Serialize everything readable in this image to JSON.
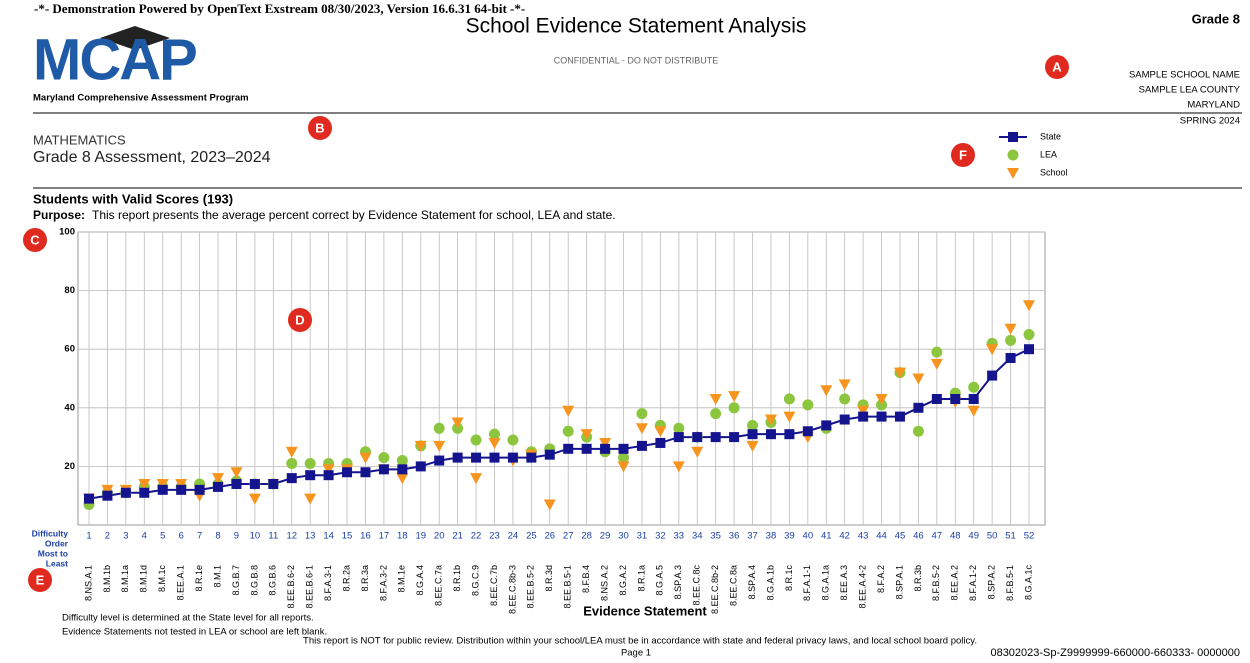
{
  "header": {
    "demo": "-*- Demonstration Powered by OpenText Exstream 08/30/2023, Version 16.6.31 64-bit -*-",
    "title": "School Evidence Statement Analysis",
    "grade": "Grade 8",
    "logo": "MCAP",
    "program": "Maryland Comprehensive Assessment Program",
    "confidential": "CONFIDENTIAL - DO NOT DISTRIBUTE",
    "school": "SAMPLE SCHOOL NAME",
    "lea": "SAMPLE LEA COUNTY",
    "state": "MARYLAND",
    "season": "SPRING 2024"
  },
  "subject": "MATHEMATICS",
  "assessment": "Grade 8 Assessment, 2023–2024",
  "students": "Students with Valid Scores (193)",
  "purpose_label": "Purpose:",
  "purpose": "This report presents the average percent correct by Evidence Statement for school, LEA and state.",
  "callouts": [
    "A",
    "B",
    "C",
    "D",
    "E",
    "F"
  ],
  "chart_data": {
    "type": "line",
    "x_label": "Evidence Statement",
    "order_label": [
      "Difficulty",
      "Order",
      "Most to",
      "Least"
    ],
    "difficulty_order": [
      1,
      2,
      3,
      4,
      5,
      6,
      7,
      8,
      9,
      10,
      11,
      12,
      13,
      14,
      15,
      16,
      17,
      18,
      19,
      20,
      21,
      22,
      23,
      24,
      25,
      26,
      27,
      28,
      29,
      30,
      31,
      32,
      33,
      34,
      35,
      36,
      37,
      38,
      39,
      40,
      41,
      42,
      43,
      44,
      45,
      46,
      47,
      48,
      49,
      50,
      51,
      52
    ],
    "categories": [
      "8.NS.A.1",
      "8.M.1b",
      "8.M.1a",
      "8.M.1d",
      "8.M.1c",
      "8.EE.A.1",
      "8.R.1e",
      "8.M.1",
      "8.G.B.7",
      "8.G.B.8",
      "8.G.B.6",
      "8.EE.B.6-2",
      "8.EE.B.6-1",
      "8.F.A.3-1",
      "8.R.2a",
      "8.R.3a",
      "8.F.A.3-2",
      "8.M.1e",
      "8.G.A.4",
      "8.EE.C.7a",
      "8.R.1b",
      "8.G.C.9",
      "8.EE.C.7b",
      "8.EE.C.8b-3",
      "8.EE.B.5-2",
      "8.R.3d",
      "8.EE.B.5-1",
      "8.F.B.4",
      "8.NS.A.2",
      "8.G.A.2",
      "8.R.1a",
      "8.G.A.5",
      "8.SP.A.3",
      "8.EE.C.8c",
      "8.EE.C.8b-2",
      "8.EE.C.8a",
      "8.SP.A.4",
      "8.G.A.1b",
      "8.R.1c",
      "8.F.A.1-1",
      "8.G.A.1a",
      "8.EE.A.3",
      "8.EE.A.4-2",
      "8.F.A.2",
      "8.SP.A.1",
      "8.R.3b",
      "8.F.B.5-2",
      "8.EE.A.2",
      "8.F.A.1-2",
      "8.SP.A.2",
      "8.F.B.5-1",
      "8.G.A.1c"
    ],
    "series": [
      {
        "name": "State",
        "color": "#14148f",
        "marker": "square",
        "values": [
          9,
          10,
          11,
          11,
          12,
          12,
          12,
          13,
          14,
          14,
          14,
          16,
          17,
          17,
          18,
          18,
          19,
          19,
          20,
          22,
          23,
          23,
          23,
          23,
          23,
          24,
          26,
          26,
          26,
          26,
          27,
          28,
          30,
          30,
          30,
          30,
          31,
          31,
          31,
          32,
          34,
          36,
          37,
          37,
          37,
          40,
          43,
          43,
          43,
          51,
          57,
          60
        ]
      },
      {
        "name": "LEA",
        "color": "#8cc63f",
        "marker": "circle",
        "values": [
          7,
          11,
          11,
          13,
          13,
          13,
          14,
          14,
          15,
          14,
          14,
          21,
          21,
          21,
          21,
          25,
          23,
          22,
          27,
          33,
          33,
          29,
          31,
          29,
          25,
          26,
          32,
          30,
          25,
          23,
          38,
          34,
          33,
          30,
          38,
          40,
          34,
          35,
          43,
          41,
          33,
          43,
          41,
          41,
          52,
          32,
          59,
          45,
          47,
          62,
          63,
          65
        ]
      },
      {
        "name": "School",
        "color": "#f7941d",
        "marker": "triangle",
        "values": [
          9,
          12,
          12,
          14,
          14,
          14,
          10,
          16,
          18,
          9,
          14,
          25,
          9,
          19,
          19,
          23,
          19,
          16,
          27,
          27,
          35,
          16,
          28,
          22,
          24,
          7,
          39,
          31,
          28,
          20,
          33,
          32,
          20,
          25,
          43,
          44,
          27,
          36,
          37,
          30,
          46,
          48,
          39,
          43,
          52,
          50,
          55,
          42,
          39,
          60,
          67,
          75
        ]
      }
    ],
    "ylim": [
      0,
      100
    ],
    "yticks": [
      20,
      40,
      60,
      80,
      100
    ],
    "grid": true
  },
  "footer": {
    "note1": "Difficulty level is determined at the State level for all reports.",
    "note2": "Evidence Statements not tested in LEA or school are left blank.",
    "note3": "This report is NOT for public review. Distribution within your school/LEA must be in accordance with state and federal privacy laws, and local school board policy.",
    "page": "Page 1",
    "code": "08302023-Sp-Z9999999-660000-660333- 0000000"
  }
}
